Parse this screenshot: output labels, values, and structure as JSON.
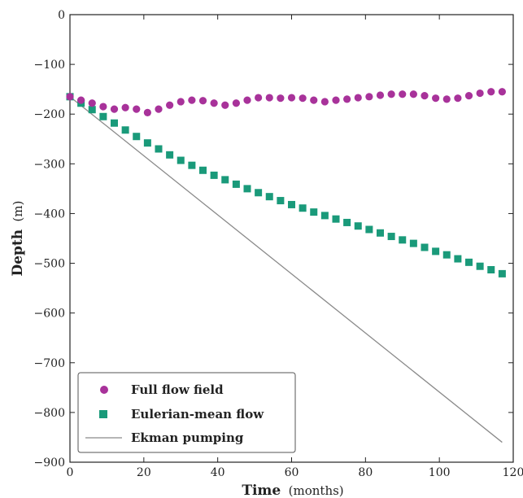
{
  "chart_data": {
    "type": "scatter",
    "xlabel_main": "Time",
    "xlabel_unit": "(months)",
    "ylabel_main": "Depth",
    "ylabel_unit": "(m)",
    "xlim": [
      0,
      120
    ],
    "ylim": [
      -900,
      0
    ],
    "xticks": [
      0,
      20,
      40,
      60,
      80,
      100,
      120
    ],
    "yticks": [
      0,
      -100,
      -200,
      -300,
      -400,
      -500,
      -600,
      -700,
      -800,
      -900
    ],
    "grid": false,
    "legend_position": "bottom-left",
    "series": [
      {
        "name": "Full flow field",
        "marker": "circle",
        "color": "#a8329a",
        "points": [
          [
            0,
            -165
          ],
          [
            3,
            -172
          ],
          [
            6,
            -178
          ],
          [
            9,
            -185
          ],
          [
            12,
            -190
          ],
          [
            15,
            -187
          ],
          [
            18,
            -190
          ],
          [
            21,
            -197
          ],
          [
            24,
            -190
          ],
          [
            27,
            -182
          ],
          [
            30,
            -175
          ],
          [
            33,
            -172
          ],
          [
            36,
            -173
          ],
          [
            39,
            -178
          ],
          [
            42,
            -182
          ],
          [
            45,
            -178
          ],
          [
            48,
            -172
          ],
          [
            51,
            -167
          ],
          [
            54,
            -167
          ],
          [
            57,
            -168
          ],
          [
            60,
            -167
          ],
          [
            63,
            -168
          ],
          [
            66,
            -172
          ],
          [
            69,
            -175
          ],
          [
            72,
            -172
          ],
          [
            75,
            -170
          ],
          [
            78,
            -167
          ],
          [
            81,
            -165
          ],
          [
            84,
            -162
          ],
          [
            87,
            -160
          ],
          [
            90,
            -160
          ],
          [
            93,
            -160
          ],
          [
            96,
            -163
          ],
          [
            99,
            -168
          ],
          [
            102,
            -170
          ],
          [
            105,
            -168
          ],
          [
            108,
            -163
          ],
          [
            111,
            -158
          ],
          [
            114,
            -155
          ],
          [
            117,
            -155
          ]
        ]
      },
      {
        "name": "Eulerian-mean flow",
        "marker": "square",
        "color": "#1a9a7a",
        "points": [
          [
            0,
            -165
          ],
          [
            3,
            -178
          ],
          [
            6,
            -191
          ],
          [
            9,
            -205
          ],
          [
            12,
            -218
          ],
          [
            15,
            -232
          ],
          [
            18,
            -245
          ],
          [
            21,
            -258
          ],
          [
            24,
            -270
          ],
          [
            27,
            -282
          ],
          [
            30,
            -293
          ],
          [
            33,
            -303
          ],
          [
            36,
            -313
          ],
          [
            39,
            -323
          ],
          [
            42,
            -332
          ],
          [
            45,
            -341
          ],
          [
            48,
            -350
          ],
          [
            51,
            -358
          ],
          [
            54,
            -366
          ],
          [
            57,
            -374
          ],
          [
            60,
            -382
          ],
          [
            63,
            -389
          ],
          [
            66,
            -397
          ],
          [
            69,
            -404
          ],
          [
            72,
            -411
          ],
          [
            75,
            -418
          ],
          [
            78,
            -425
          ],
          [
            81,
            -432
          ],
          [
            84,
            -439
          ],
          [
            87,
            -446
          ],
          [
            90,
            -453
          ],
          [
            93,
            -460
          ],
          [
            96,
            -468
          ],
          [
            99,
            -476
          ],
          [
            102,
            -483
          ],
          [
            105,
            -491
          ],
          [
            108,
            -498
          ],
          [
            111,
            -506
          ],
          [
            114,
            -513
          ],
          [
            117,
            -521
          ]
        ]
      },
      {
        "name": "Ekman pumping",
        "marker": "line",
        "color": "#8a8a8a",
        "points": [
          [
            0,
            -165
          ],
          [
            117,
            -860
          ]
        ]
      }
    ]
  }
}
